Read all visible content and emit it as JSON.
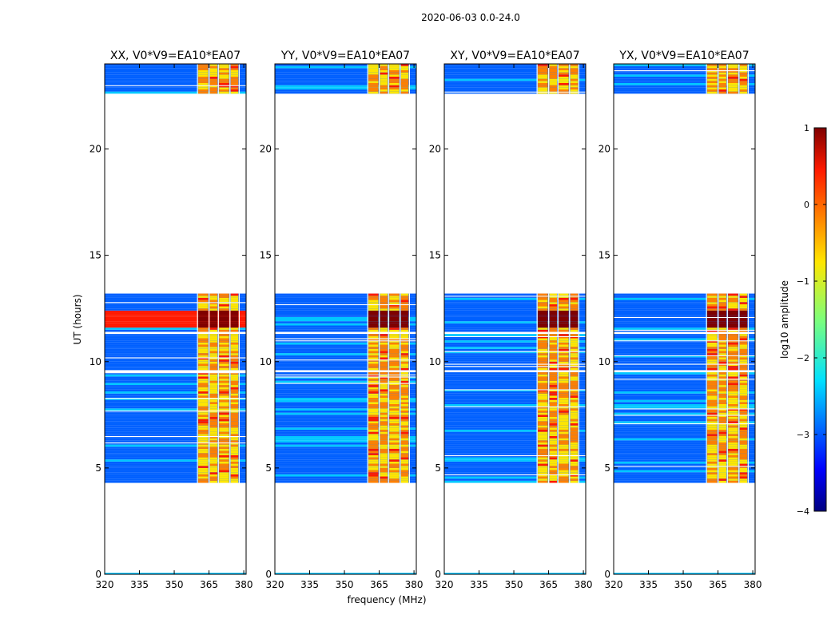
{
  "suptitle": "2020-06-03 0.0-24.0",
  "chart_data": {
    "type": "heatmap",
    "xlabel": "frequency (MHz)",
    "ylabel": "UT (hours)",
    "xlim": [
      320,
      381
    ],
    "ylim": [
      0,
      24
    ],
    "xticks": [
      320,
      335,
      350,
      365,
      380
    ],
    "yticks": [
      0,
      5,
      10,
      15,
      20
    ],
    "panels": [
      {
        "title": "XX, V0*V9=EA10*EA07",
        "band_edges_mhz": [
          360,
          365,
          369,
          374,
          378
        ]
      },
      {
        "title": "YY, V0*V9=EA10*EA07",
        "band_edges_mhz": [
          360,
          365,
          369,
          374,
          378
        ]
      },
      {
        "title": "XY, V0*V9=EA10*EA07",
        "band_edges_mhz": [
          360,
          365,
          369,
          374,
          378
        ]
      },
      {
        "title": "YX, V0*V9=EA10*EA07",
        "band_edges_mhz": [
          360,
          365,
          369,
          374,
          378
        ]
      }
    ],
    "data_segments_ut_hours": [
      [
        4.3,
        9.5
      ],
      [
        9.6,
        11.3
      ],
      [
        11.4,
        13.2
      ],
      [
        22.6,
        24.0
      ]
    ],
    "strong_rfi_ut_hours": [
      11.6,
      12.4
    ],
    "colorbar": {
      "label": "log10 amplitude",
      "range": [
        -4,
        1
      ],
      "ticks": [
        "−4",
        "−3",
        "−2",
        "−1",
        "0",
        "1"
      ],
      "colormap": "jet"
    }
  }
}
